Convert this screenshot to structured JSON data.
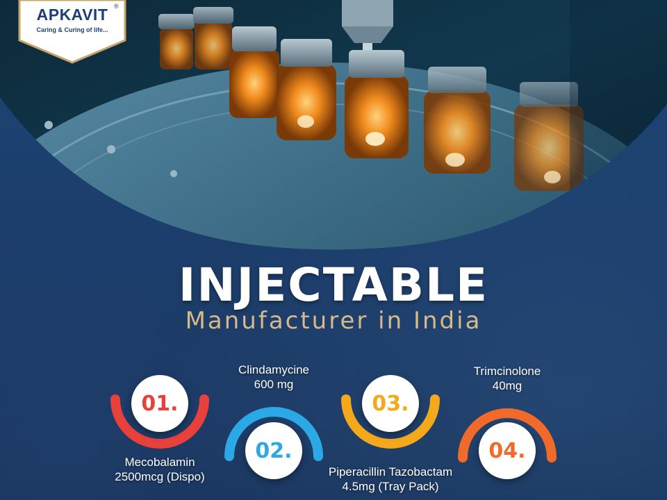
{
  "brand": {
    "name": "APKAVIT",
    "registered_mark": "®",
    "tagline": "Caring & Curing of life..."
  },
  "headline": {
    "title": "INJECTABLE",
    "subtitle": "Manufacturer in India"
  },
  "products": [
    {
      "number": "01.",
      "name_line1": "Mecobalamin",
      "name_line2": "2500mcg (Dispo)",
      "color": "#e8403a"
    },
    {
      "number": "02.",
      "name_line1": "Clindamycine",
      "name_line2": "600 mg",
      "color": "#2aa9e6"
    },
    {
      "number": "03.",
      "name_line1": "Piperacillin Tazobactam",
      "name_line2": "4.5mg (Tray Pack)",
      "color": "#f4a81c"
    },
    {
      "number": "04.",
      "name_line1": "Trimcinolone",
      "name_line2": "40mg",
      "color": "#f26a2a"
    }
  ],
  "colors": {
    "background": "#1b3d6b",
    "title": "#ffffff",
    "subtitle": "#d8b98a",
    "logo_text": "#1d3e78",
    "logo_border": "#c9a46a"
  }
}
